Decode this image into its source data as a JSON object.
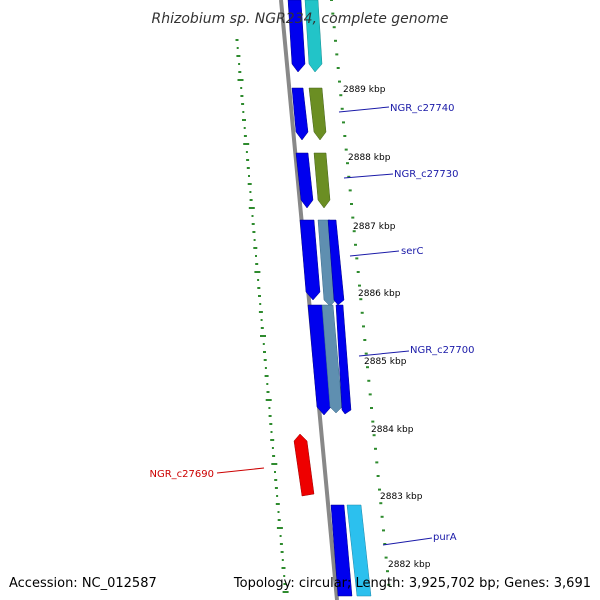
{
  "title": "Rhizobium sp. NGR234, complete genome",
  "footer": {
    "accession": "Accession: NC_012587",
    "summary": "Topology: circular; Length: 3,925,702 bp; Genes: 3,691"
  },
  "ticks": [
    {
      "label": "2889 kbp"
    },
    {
      "label": "2888 kbp"
    },
    {
      "label": "2887 kbp"
    },
    {
      "label": "2886 kbp"
    },
    {
      "label": "2885 kbp"
    },
    {
      "label": "2884 kbp"
    },
    {
      "label": "2883 kbp"
    },
    {
      "label": "2882 kbp"
    }
  ],
  "gene_labels": [
    {
      "name": "NGR_c27740",
      "color": "#1a1aa8"
    },
    {
      "name": "NGR_c27730",
      "color": "#1a1aa8"
    },
    {
      "name": "serC",
      "color": "#1a1aa8"
    },
    {
      "name": "NGR_c27700",
      "color": "#1a1aa8"
    },
    {
      "name": "NGR_c27690",
      "color": "#cc0000"
    },
    {
      "name": "purA",
      "color": "#1a1aa8"
    }
  ],
  "colors": {
    "forward_cds": "#0000ee",
    "reverse_cds": "#ee0000",
    "cog_teal": "#22c4c8",
    "cog_olive": "#6b8e23",
    "cog_steel": "#5f8fb0",
    "cog_lightblue": "#2cc0ee",
    "backbone": "#888888",
    "gc_dots": "#2e8b2e"
  }
}
